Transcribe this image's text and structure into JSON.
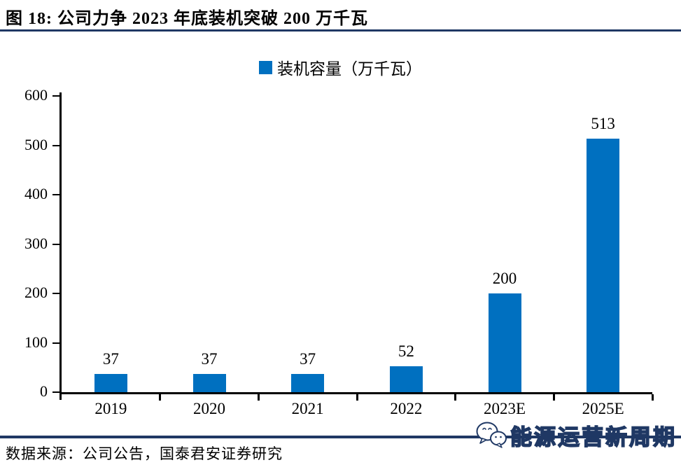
{
  "figure": {
    "title": "图  18:  公司力争 2023 年底装机突破 200 万千瓦",
    "source": "数据来源：公司公告，国泰君安证券研究",
    "watermark": "能源运营新周期"
  },
  "colors": {
    "bar": "#0070C0",
    "navy_rule": "#1F3864",
    "axis": "#000000",
    "text": "#000000"
  },
  "chart_data": {
    "type": "bar",
    "title": "",
    "legend": [
      "装机容量（万千瓦）"
    ],
    "legend_position": "top-center",
    "categories": [
      "2019",
      "2020",
      "2021",
      "2022",
      "2023E",
      "2025E"
    ],
    "values": [
      37,
      37,
      37,
      52,
      200,
      513
    ],
    "xlabel": "",
    "ylabel": "",
    "ylim": [
      0,
      600
    ],
    "ytick_step": 100,
    "yticks": [
      0,
      100,
      200,
      300,
      400,
      500,
      600
    ],
    "grid": false,
    "data_labels_shown": true
  }
}
